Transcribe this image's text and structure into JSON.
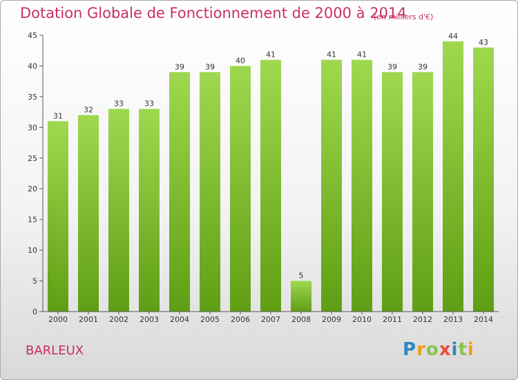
{
  "chart_data": {
    "type": "bar",
    "title": "Dotation Globale de Fonctionnement de 2000 à 2014",
    "subtitle": "(en milliers d'€)",
    "categories": [
      "2000",
      "2001",
      "2002",
      "2003",
      "2004",
      "2005",
      "2006",
      "2007",
      "2008",
      "2009",
      "2010",
      "2011",
      "2012",
      "2013",
      "2014"
    ],
    "values": [
      31,
      32,
      33,
      33,
      39,
      39,
      40,
      41,
      5,
      41,
      41,
      39,
      39,
      44,
      43
    ],
    "ylim": [
      0,
      45
    ],
    "yticks": [
      0,
      5,
      10,
      15,
      20,
      25,
      30,
      35,
      40,
      45
    ],
    "xlabel": "",
    "ylabel": "",
    "grid": false,
    "bar_color_top": "#9fd84f",
    "bar_color_bottom": "#5f9e14"
  },
  "commune": "BARLEUX",
  "brand": {
    "letters": [
      "P",
      "r",
      "o",
      "x",
      "i",
      "t",
      "i"
    ],
    "colors": [
      "#2e86c1",
      "#f39c12",
      "#8bc34a",
      "#e74c3c",
      "#2e86c1",
      "#8bc34a",
      "#f39c12"
    ]
  }
}
